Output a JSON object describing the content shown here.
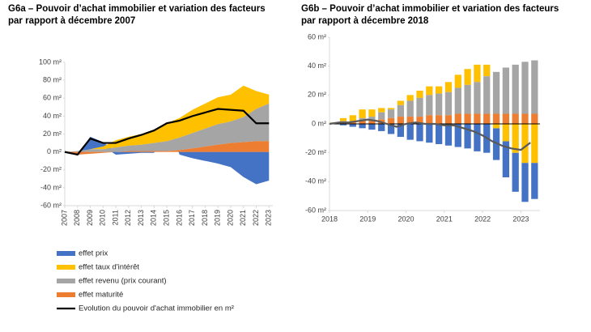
{
  "chart_data": [
    {
      "type": "area",
      "title": [
        "G6a – Pouvoir d’achat immobilier et variation des facteurs",
        "par rapport à décembre 2007"
      ],
      "x": [
        2007,
        2008,
        2009,
        2010,
        2011,
        2012,
        2013,
        2014,
        2015,
        2016,
        2017,
        2018,
        2019,
        2020,
        2021,
        2022,
        2023
      ],
      "xlim": [
        2007,
        2023.3
      ],
      "xticks": [
        2007,
        2008,
        2009,
        2010,
        2011,
        2012,
        2013,
        2014,
        2015,
        2016,
        2017,
        2018,
        2019,
        2020,
        2021,
        2022,
        2023
      ],
      "ylim": [
        -60,
        100
      ],
      "yticks": [
        {
          "value": -60,
          "label": "-60 m²"
        },
        {
          "value": -40,
          "label": "-40 m²"
        },
        {
          "value": -20,
          "label": "-20 m²"
        },
        {
          "value": 0,
          "label": "0 m²"
        },
        {
          "value": 20,
          "label": "20 m²"
        },
        {
          "value": 40,
          "label": "40 m²"
        },
        {
          "value": 60,
          "label": "60 m²"
        },
        {
          "value": 80,
          "label": "80 m²"
        },
        {
          "value": 100,
          "label": "100 m²"
        }
      ],
      "series": [
        {
          "name": "effet prix",
          "color": "#4472c4",
          "type": "area",
          "values": [
            0,
            -1,
            14,
            5,
            -3,
            -2,
            -1,
            -1,
            0,
            -3,
            -7,
            -10,
            -13,
            -17,
            -28,
            -36,
            -32
          ]
        },
        {
          "name": "effet taux d'intérêt",
          "color": "#ffc000",
          "type": "area",
          "values": [
            0,
            0,
            0,
            3,
            8,
            10,
            12,
            15,
            20,
            22,
            26,
            28,
            30,
            30,
            35,
            20,
            10
          ]
        },
        {
          "name": "effet revenu (prix courant)",
          "color": "#a5a5a5",
          "type": "area",
          "values": [
            0,
            1,
            3,
            3,
            5,
            6,
            7,
            9,
            11,
            14,
            17,
            20,
            23,
            24,
            28,
            36,
            42
          ]
        },
        {
          "name": "effet maturité",
          "color": "#ed7d31",
          "type": "area",
          "values": [
            0,
            -3,
            -2,
            -1,
            0,
            1,
            1,
            1,
            1,
            2,
            4,
            6,
            8,
            10,
            11,
            12,
            12
          ]
        },
        {
          "name": "Evolution du pouvoir d'achat immobilier en m²",
          "color": "#000000",
          "type": "line",
          "values": [
            0,
            -3,
            15,
            10,
            10,
            15,
            19,
            24,
            32,
            35,
            40,
            44,
            48,
            47,
            46,
            32,
            32
          ]
        }
      ]
    },
    {
      "type": "bar",
      "title": [
        "G6b – Pouvoir d’achat immobilier et variation des facteurs",
        "par rapport à décembre 2018"
      ],
      "x": [
        2018,
        2018.25,
        2018.5,
        2018.75,
        2019,
        2019.25,
        2019.5,
        2019.75,
        2020,
        2020.25,
        2020.5,
        2020.75,
        2021,
        2021.25,
        2021.5,
        2021.75,
        2022,
        2022.25,
        2022.5,
        2022.75,
        2023,
        2023.25
      ],
      "xlim": [
        2018,
        2023.5
      ],
      "xticks": [
        2018,
        2019,
        2020,
        2021,
        2022,
        2023
      ],
      "ylim": [
        -60,
        60
      ],
      "yticks": [
        {
          "value": -60,
          "label": "-60 m²"
        },
        {
          "value": -40,
          "label": "-40 m²"
        },
        {
          "value": -20,
          "label": "-20 m²"
        },
        {
          "value": 0,
          "label": "0 m²"
        },
        {
          "value": 20,
          "label": "20 m²"
        },
        {
          "value": 40,
          "label": "40 m²"
        },
        {
          "value": 60,
          "label": "60 m²"
        }
      ],
      "series": [
        {
          "color": "#4472c4",
          "type": "bar",
          "values": [
            0,
            -1,
            -2,
            -3,
            -4,
            -5,
            -7,
            -9,
            -11,
            -12,
            -13,
            -14,
            -15,
            -16,
            -17,
            -19,
            -20,
            -22,
            -25,
            -27,
            -27,
            -25
          ]
        },
        {
          "color": "#ffc000",
          "type": "bar",
          "values": [
            1,
            2,
            4,
            6,
            5,
            3,
            1,
            3,
            4,
            5,
            6,
            5,
            7,
            9,
            11,
            12,
            8,
            -3,
            -12,
            -20,
            -27,
            -27
          ]
        },
        {
          "color": "#a5a5a5",
          "type": "bar",
          "values": [
            0,
            1,
            1,
            2,
            3,
            5,
            6,
            8,
            11,
            13,
            14,
            15,
            16,
            18,
            20,
            22,
            26,
            29,
            32,
            34,
            36,
            37
          ]
        },
        {
          "color": "#ed7d31",
          "type": "bar",
          "values": [
            0,
            1,
            1,
            2,
            2,
            3,
            4,
            5,
            5,
            5,
            6,
            6,
            6,
            7,
            7,
            7,
            7,
            7,
            7,
            7,
            7,
            7
          ]
        },
        {
          "color": "#595959",
          "type": "line",
          "values": [
            0,
            1,
            1,
            2,
            3,
            2,
            0,
            -2,
            0,
            1,
            0,
            0,
            -1,
            -1,
            -3,
            -5,
            -8,
            -12,
            -15,
            -17,
            -18,
            -13
          ]
        }
      ]
    }
  ]
}
